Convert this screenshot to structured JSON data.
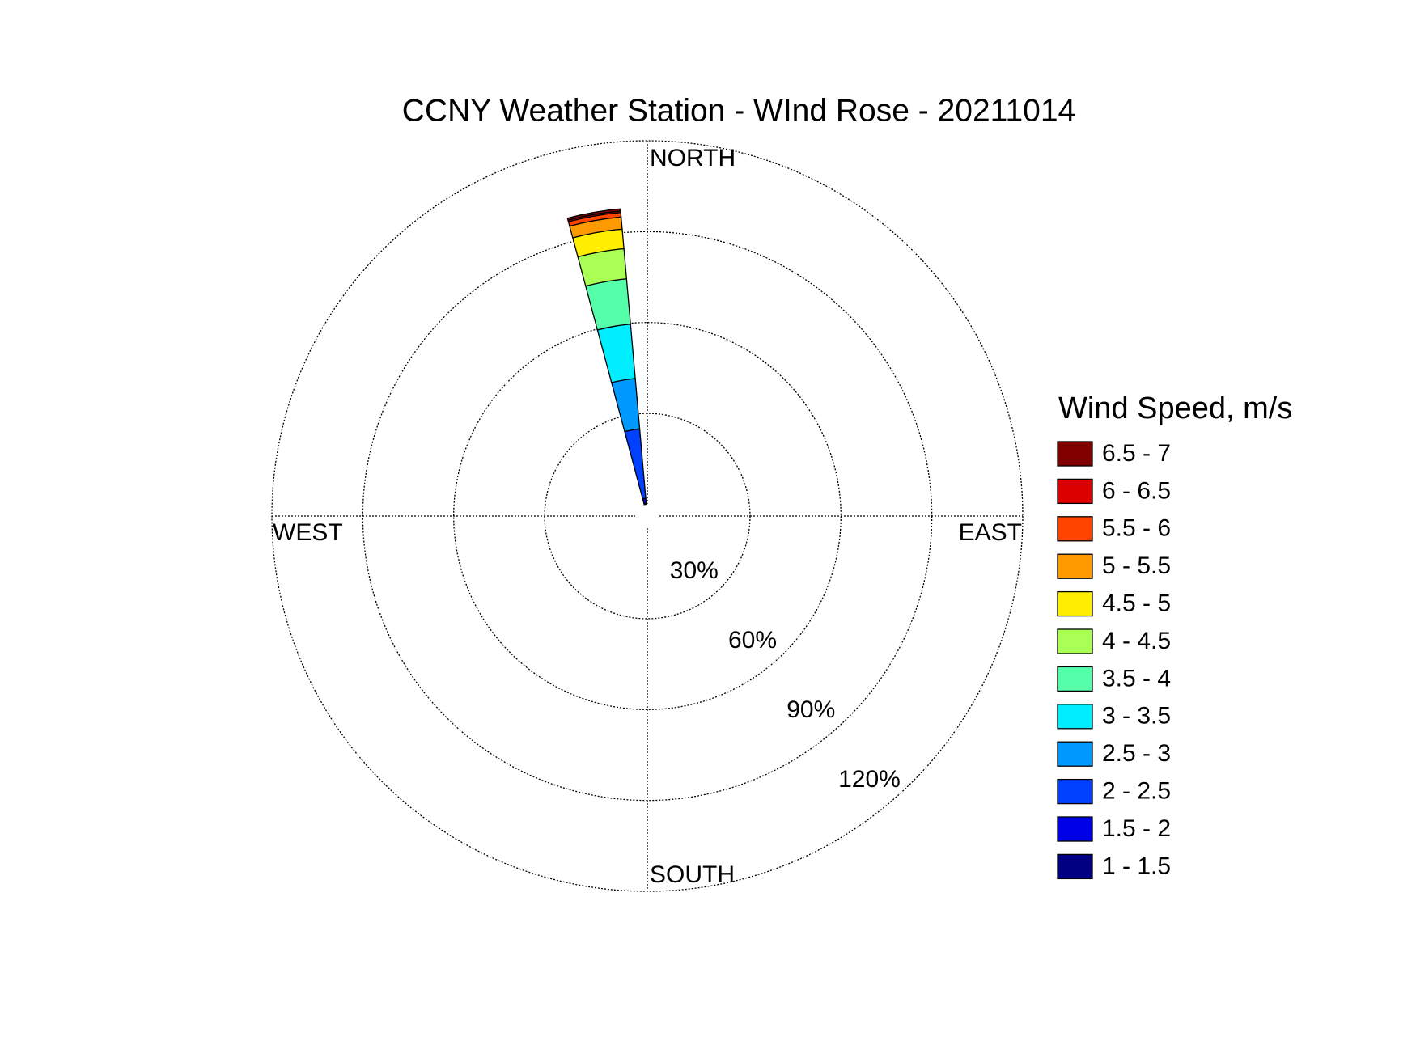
{
  "chart_data": {
    "type": "wind_rose",
    "title": "CCNY Weather Station - WInd Rose - 20211014",
    "legend_title": "Wind Speed, m/s",
    "direction_labels": {
      "north": "NORTH",
      "east": "EAST",
      "south": "SOUTH",
      "west": "WEST"
    },
    "directions": [
      350
    ],
    "rlim": [
      0,
      120
    ],
    "rticks": [
      {
        "value": 30,
        "label": "30%"
      },
      {
        "value": 60,
        "label": "60%"
      },
      {
        "value": 90,
        "label": "90%"
      },
      {
        "value": 120,
        "label": "120%"
      }
    ],
    "grid": true,
    "legend": "right",
    "series": [
      {
        "name": "1 - 1.5",
        "color": "#000080",
        "values": [
          0.5
        ]
      },
      {
        "name": "1.5 - 2",
        "color": "#0000e6",
        "values": [
          1.5
        ]
      },
      {
        "name": "2 - 2.5",
        "color": "#0040ff",
        "values": [
          23
        ]
      },
      {
        "name": "2.5 - 3",
        "color": "#0099ff",
        "values": [
          16.7
        ]
      },
      {
        "name": "3 - 3.5",
        "color": "#00eeff",
        "values": [
          18
        ]
      },
      {
        "name": "3.5 - 4",
        "color": "#55ffaa",
        "values": [
          15
        ]
      },
      {
        "name": "4 - 4.5",
        "color": "#aaff55",
        "values": [
          10
        ]
      },
      {
        "name": "4.5 - 5",
        "color": "#ffee00",
        "values": [
          6.5
        ]
      },
      {
        "name": "5 - 5.5",
        "color": "#ff9900",
        "values": [
          4
        ]
      },
      {
        "name": "5.5 - 6",
        "color": "#ff4400",
        "values": [
          1.5
        ]
      },
      {
        "name": "6 - 6.5",
        "color": "#dd0000",
        "values": [
          0.5
        ]
      },
      {
        "name": "6.5 - 7",
        "color": "#800000",
        "values": [
          0.7
        ]
      }
    ]
  }
}
